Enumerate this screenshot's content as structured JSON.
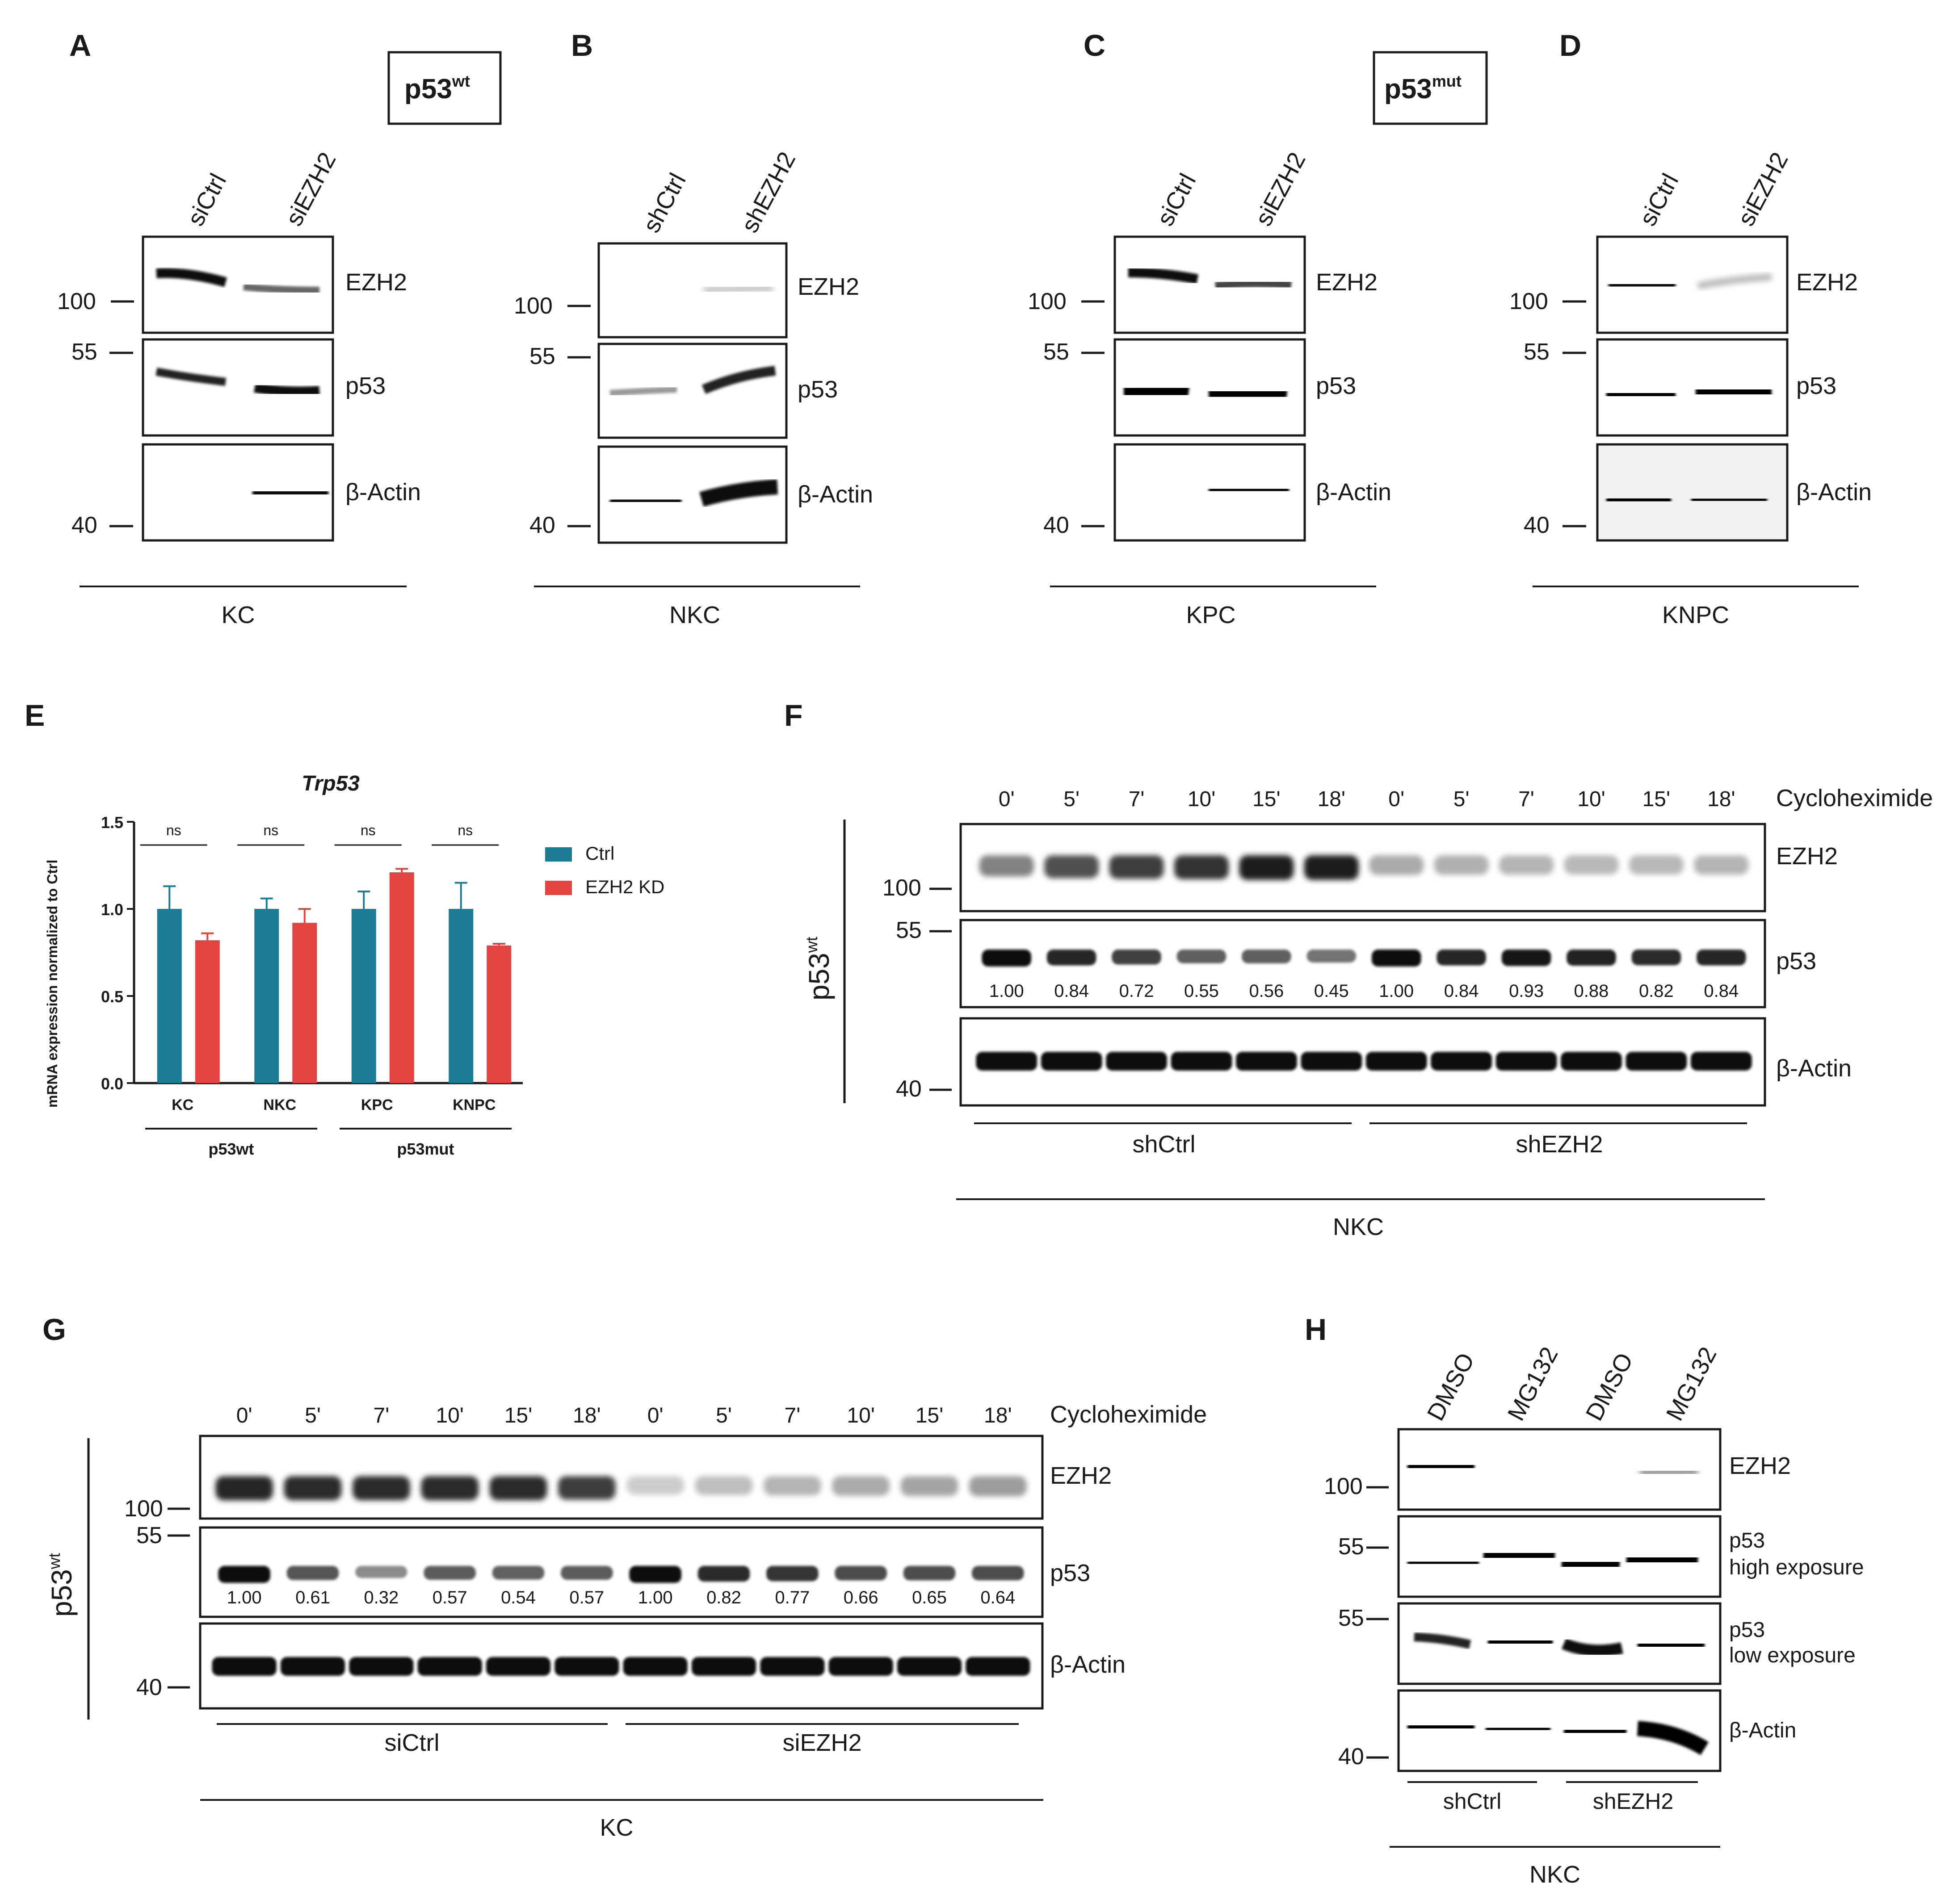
{
  "colors": {
    "ctrl": "#1b7c97",
    "kd": "#e3443f",
    "ink": "#1a1a1a"
  },
  "labels": {
    "p53wt": "p53",
    "p53mut": "p53",
    "wt_sup": "wt",
    "mut_sup": "mut",
    "p53wt_side": "p53",
    "wt_sup_side": "wt",
    "cyclo": "Cycloheximide"
  },
  "blot_panels": [
    {
      "letter": "A",
      "lanes": [
        "siCtrl",
        "siEZH2"
      ],
      "bands": [
        "EZH2",
        "p53",
        "β-Actin"
      ],
      "cell_line": "KC",
      "markers": {
        "m100": "100",
        "m55": "55",
        "m40": "40"
      }
    },
    {
      "letter": "B",
      "lanes": [
        "shCtrl",
        "shEZH2"
      ],
      "bands": [
        "EZH2",
        "p53",
        "β-Actin"
      ],
      "cell_line": "NKC",
      "markers": {
        "m100": "100",
        "m55": "55",
        "m40": "40"
      }
    },
    {
      "letter": "C",
      "lanes": [
        "siCtrl",
        "siEZH2"
      ],
      "bands": [
        "EZH2",
        "p53",
        "β-Actin"
      ],
      "cell_line": "KPC",
      "markers": {
        "m100": "100",
        "m55": "55",
        "m40": "40"
      }
    },
    {
      "letter": "D",
      "lanes": [
        "siCtrl",
        "siEZH2"
      ],
      "bands": [
        "EZH2",
        "p53",
        "β-Actin"
      ],
      "cell_line": "KNPC",
      "markers": {
        "m100": "100",
        "m55": "55",
        "m40": "40"
      }
    }
  ],
  "chart_data": {
    "type": "bar",
    "letter": "E",
    "title": "Trp53",
    "ylabel": "mRNA expression normalized to Ctrl",
    "ylim": [
      0,
      1.5
    ],
    "yticks": [
      "0.0",
      "0.5",
      "1.0",
      "1.5"
    ],
    "categories": [
      "KC",
      "NKC",
      "KPC",
      "KNPC"
    ],
    "groups": [
      {
        "label": "p53wt",
        "categories": [
          "KC",
          "NKC"
        ]
      },
      {
        "label": "p53mut",
        "categories": [
          "KPC",
          "KNPC"
        ]
      }
    ],
    "series": [
      {
        "name": "Ctrl",
        "values": [
          1.0,
          1.0,
          1.0,
          1.0
        ],
        "errors": [
          0.13,
          0.06,
          0.1,
          0.15
        ]
      },
      {
        "name": "EZH2 KD",
        "values": [
          0.82,
          0.92,
          1.21,
          0.79
        ],
        "errors": [
          0.04,
          0.08,
          0.02,
          0.01
        ]
      }
    ],
    "significance": [
      "ns",
      "ns",
      "ns",
      "ns"
    ],
    "legend_position": "right"
  },
  "panel_F": {
    "letter": "F",
    "times": [
      "0'",
      "5'",
      "7'",
      "10'",
      "15'",
      "18'",
      "0'",
      "5'",
      "7'",
      "10'",
      "15'",
      "18'"
    ],
    "bands": [
      "EZH2",
      "p53",
      "β-Actin"
    ],
    "quant": [
      "1.00",
      "0.84",
      "0.72",
      "0.55",
      "0.56",
      "0.45",
      "1.00",
      "0.84",
      "0.93",
      "0.88",
      "0.82",
      "0.84"
    ],
    "groups": [
      "shCtrl",
      "shEZH2"
    ],
    "cell_line": "NKC",
    "markers": {
      "m100": "100",
      "m55": "55",
      "m40": "40"
    }
  },
  "panel_G": {
    "letter": "G",
    "times": [
      "0'",
      "5'",
      "7'",
      "10'",
      "15'",
      "18'",
      "0'",
      "5'",
      "7'",
      "10'",
      "15'",
      "18'"
    ],
    "bands": [
      "EZH2",
      "p53",
      "β-Actin"
    ],
    "quant": [
      "1.00",
      "0.61",
      "0.32",
      "0.57",
      "0.54",
      "0.57",
      "1.00",
      "0.82",
      "0.77",
      "0.66",
      "0.65",
      "0.64"
    ],
    "groups": [
      "siCtrl",
      "siEZH2"
    ],
    "cell_line": "KC",
    "markers": {
      "m100": "100",
      "m55": "55",
      "m40": "40"
    }
  },
  "panel_H": {
    "letter": "H",
    "lanes": [
      "DMSO",
      "MG132",
      "DMSO",
      "MG132"
    ],
    "bands": [
      "EZH2",
      "p53",
      "high exposure",
      "p53",
      "low exposure",
      "β-Actin"
    ],
    "groups": [
      "shCtrl",
      "shEZH2"
    ],
    "cell_line": "NKC",
    "markers": {
      "m100": "100",
      "m55a": "55",
      "m55b": "55",
      "m40": "40"
    }
  }
}
